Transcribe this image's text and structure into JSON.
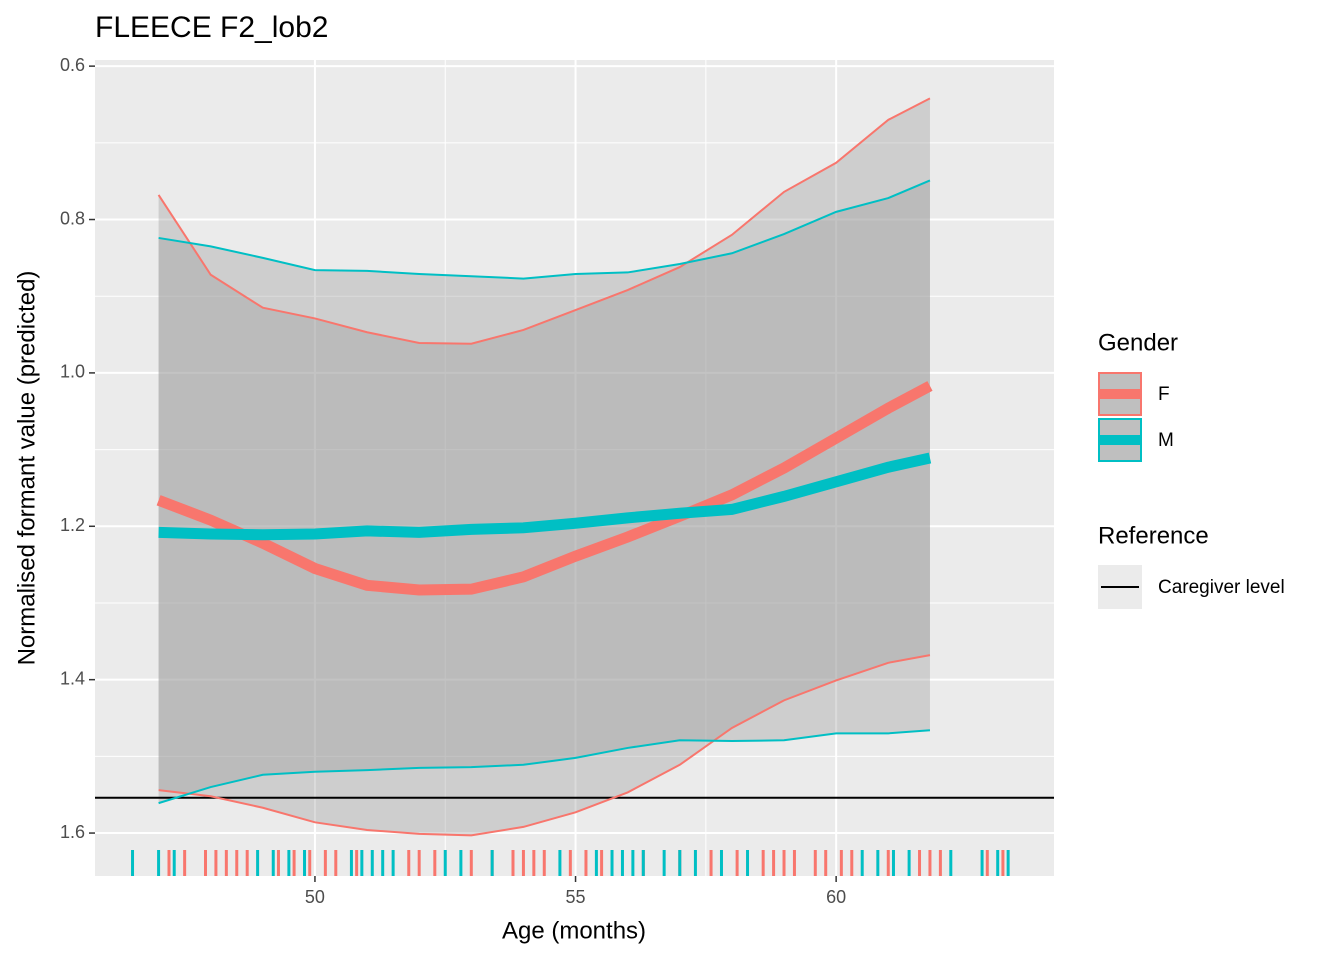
{
  "chart_data": {
    "type": "line",
    "title": "FLEECE F2_lob2",
    "xlabel": "Age (months)",
    "ylabel": "Normalised formant value (predicted)",
    "xlim": [
      45.78,
      64.18
    ],
    "xticks": [
      50,
      55,
      60
    ],
    "ylim": [
      1.656,
      0.592
    ],
    "yticks": [
      0.6,
      0.8,
      {
        "value": 1,
        "label": "1.0"
      },
      1.2,
      1.4,
      1.6
    ],
    "grid": true,
    "legend_title": "Gender",
    "x": [
      47,
      48,
      49,
      50,
      51,
      52,
      53,
      54,
      55,
      56,
      57,
      58,
      59,
      60,
      61,
      61.8
    ],
    "series": [
      {
        "name": "F",
        "color": "#F8766D",
        "values": [
          1.166,
          1.192,
          1.222,
          1.255,
          1.277,
          1.283,
          1.282,
          1.266,
          1.239,
          1.214,
          1.187,
          1.159,
          1.124,
          1.085,
          1.046,
          1.017
        ],
        "ci_high": [
          1.544,
          1.552,
          1.567,
          1.586,
          1.596,
          1.601,
          1.603,
          1.592,
          1.573,
          1.547,
          1.511,
          1.463,
          1.427,
          1.401,
          1.378,
          1.368
        ],
        "ci_low": [
          0.768,
          0.872,
          0.915,
          0.929,
          0.947,
          0.961,
          0.962,
          0.944,
          0.918,
          0.892,
          0.862,
          0.82,
          0.764,
          0.726,
          0.67,
          0.642
        ],
        "rug": [
          47.2,
          47.5,
          47.9,
          48.1,
          48.3,
          48.5,
          48.7,
          49.3,
          49.6,
          49.9,
          50.2,
          50.4,
          50.8,
          51.8,
          52.0,
          52.3,
          53.0,
          53.4,
          53.8,
          54.0,
          54.2,
          54.4,
          54.9,
          55.2,
          55.5,
          56.3,
          57.0,
          57.6,
          58.1,
          58.6,
          58.8,
          59.0,
          59.2,
          59.6,
          59.8,
          60.1,
          60.3,
          61.0,
          61.6,
          61.8,
          62.0,
          62.9,
          63.2
        ]
      },
      {
        "name": "M",
        "color": "#00BFC4",
        "values": [
          1.208,
          1.21,
          1.211,
          1.21,
          1.206,
          1.208,
          1.204,
          1.202,
          1.196,
          1.189,
          1.183,
          1.178,
          1.161,
          1.142,
          1.123,
          1.111
        ],
        "ci_high": [
          1.561,
          1.54,
          1.524,
          1.52,
          1.518,
          1.515,
          1.514,
          1.511,
          1.502,
          1.489,
          1.479,
          1.48,
          1.479,
          1.47,
          1.47,
          1.466
        ],
        "ci_low": [
          0.824,
          0.835,
          0.85,
          0.866,
          0.867,
          0.871,
          0.874,
          0.877,
          0.871,
          0.869,
          0.858,
          0.844,
          0.819,
          0.79,
          0.772,
          0.749
        ],
        "rug": [
          46.5,
          47.0,
          47.3,
          48.9,
          49.2,
          49.5,
          49.8,
          50.7,
          50.9,
          51.1,
          51.3,
          51.5,
          52.5,
          52.8,
          53.4,
          54.7,
          55.4,
          55.7,
          55.9,
          56.1,
          56.3,
          56.7,
          57.0,
          57.3,
          57.8,
          58.3,
          60.5,
          60.8,
          61.1,
          61.4,
          62.2,
          62.8,
          63.1,
          63.3
        ]
      }
    ],
    "reference_legend_title": "Reference",
    "reference": {
      "name": "Caregiver level",
      "value": 1.554,
      "color": "#000000"
    }
  }
}
